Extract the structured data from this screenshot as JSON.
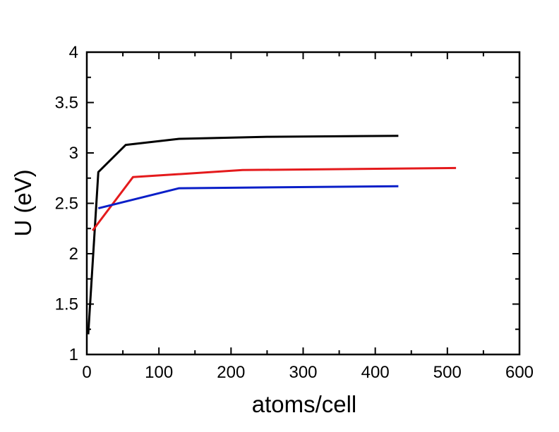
{
  "chart_data": {
    "type": "line",
    "title": "",
    "xlabel": "atoms/cell",
    "ylabel": "U (eV)",
    "xlim": [
      0,
      600
    ],
    "ylim": [
      1,
      4
    ],
    "x_ticks": [
      0,
      100,
      200,
      300,
      400,
      500,
      600
    ],
    "x_tick_labels": [
      "0",
      "100",
      "200",
      "300",
      "400",
      "500",
      "600"
    ],
    "y_ticks": [
      1,
      1.5,
      2,
      2.5,
      3,
      3.5,
      4
    ],
    "y_tick_labels": [
      "1",
      "1.5",
      "2",
      "2.5",
      "3",
      "3.5",
      "4"
    ],
    "x_minor_step": 50,
    "y_minor_step": 0.25,
    "grid": false,
    "series": [
      {
        "color": "#000000",
        "x": [
          2,
          16,
          54,
          128,
          250,
          432
        ],
        "y": [
          1.2,
          2.81,
          3.08,
          3.14,
          3.16,
          3.17
        ]
      },
      {
        "color": "#e41a1c",
        "x": [
          8,
          64,
          216,
          512
        ],
        "y": [
          2.23,
          2.76,
          2.83,
          2.85
        ]
      },
      {
        "color": "#0a1fc8",
        "x": [
          16,
          128,
          432
        ],
        "y": [
          2.45,
          2.65,
          2.67
        ]
      }
    ]
  }
}
